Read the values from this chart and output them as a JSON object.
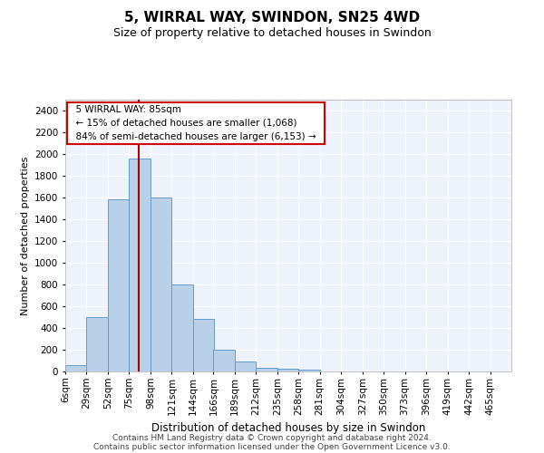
{
  "title": "5, WIRRAL WAY, SWINDON, SN25 4WD",
  "subtitle": "Size of property relative to detached houses in Swindon",
  "xlabel": "Distribution of detached houses by size in Swindon",
  "ylabel": "Number of detached properties",
  "footer_line1": "Contains HM Land Registry data © Crown copyright and database right 2024.",
  "footer_line2": "Contains public sector information licensed under the Open Government Licence v3.0.",
  "annotation_line1": "5 WIRRAL WAY: 85sqm",
  "annotation_line2": "← 15% of detached houses are smaller (1,068)",
  "annotation_line3": "84% of semi-detached houses are larger (6,153) →",
  "bar_color": "#b8d0e8",
  "bar_edge_color": "#6699cc",
  "vline_color": "#aa0000",
  "annotation_box_color": "#cc0000",
  "background_color": "#eef2fa",
  "grid_color": "#ffffff",
  "categories": [
    "6sqm",
    "29sqm",
    "52sqm",
    "75sqm",
    "98sqm",
    "121sqm",
    "144sqm",
    "166sqm",
    "189sqm",
    "212sqm",
    "235sqm",
    "258sqm",
    "281sqm",
    "304sqm",
    "327sqm",
    "350sqm",
    "373sqm",
    "396sqm",
    "419sqm",
    "442sqm",
    "465sqm"
  ],
  "bin_edges": [
    6,
    29,
    52,
    75,
    98,
    121,
    144,
    166,
    189,
    212,
    235,
    258,
    281,
    304,
    327,
    350,
    373,
    396,
    419,
    442,
    465
  ],
  "bin_width": 23,
  "values": [
    60,
    500,
    1580,
    1960,
    1600,
    800,
    480,
    200,
    90,
    35,
    25,
    20,
    0,
    0,
    0,
    0,
    0,
    0,
    0,
    0
  ],
  "vline_x": 85,
  "ylim": [
    0,
    2500
  ],
  "yticks": [
    0,
    200,
    400,
    600,
    800,
    1000,
    1200,
    1400,
    1600,
    1800,
    2000,
    2200,
    2400
  ],
  "title_fontsize": 11,
  "subtitle_fontsize": 9,
  "ylabel_fontsize": 8,
  "xlabel_fontsize": 8.5,
  "tick_fontsize": 7.5,
  "annotation_fontsize": 7.5,
  "footer_fontsize": 6.5
}
